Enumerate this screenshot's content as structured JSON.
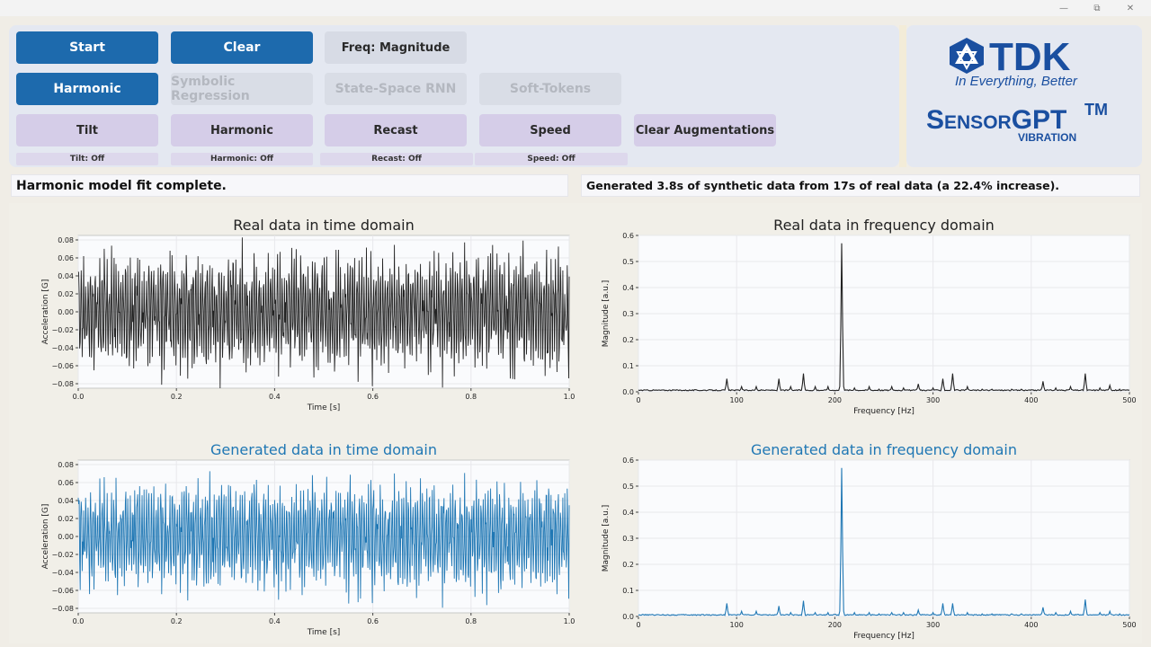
{
  "window": {
    "minimize_icon": "minimize-icon",
    "maximize_icon": "restore-icon",
    "close_icon": "close-icon"
  },
  "controls": {
    "start": "Start",
    "clear": "Clear",
    "freq_mode": "Freq: Magnitude",
    "harmonic_model": "Harmonic",
    "symbolic_regression": "Symbolic Regression",
    "state_space_rnn": "State-Space RNN",
    "soft_tokens": "Soft-Tokens",
    "aug_tilt": "Tilt",
    "aug_harmonic": "Harmonic",
    "aug_recast": "Recast",
    "aug_speed": "Speed",
    "clear_augmentations": "Clear Augmentations",
    "status_tilt": "Tilt: Off",
    "status_harmonic": "Harmonic: Off",
    "status_recast": "Recast: Off",
    "status_speed": "Speed: Off"
  },
  "logo": {
    "brand": "TDK",
    "tagline": "In Everything, Better",
    "product": "SensorGPT",
    "trademark": "TM",
    "product_sub": "VIBRATION"
  },
  "status": {
    "left": "Harmonic model fit complete.",
    "right": "Generated 3.8s of synthetic data from 17s of real data (a 22.4% increase)."
  },
  "colors": {
    "primary": "#1d6aad",
    "real": "#222222",
    "generated": "#1f77b4"
  },
  "chart_data": [
    {
      "id": "real_time",
      "type": "line",
      "title": "Real data in time domain",
      "xlabel": "Time [s]",
      "ylabel": "Acceleration [G]",
      "xlim": [
        0.0,
        1.0
      ],
      "ylim": [
        -0.085,
        0.085
      ],
      "xticks": [
        0.0,
        0.2,
        0.4,
        0.6,
        0.8,
        1.0
      ],
      "yticks": [
        -0.08,
        -0.06,
        -0.04,
        -0.02,
        0.0,
        0.02,
        0.04,
        0.06,
        0.08
      ],
      "signal": {
        "dominant_hz": 210,
        "amplitude_peak": 0.07,
        "samples": 1000
      },
      "color": "#222222",
      "grid": true
    },
    {
      "id": "real_freq",
      "type": "line",
      "title": "Real data in frequency domain",
      "xlabel": "Frequency [Hz]",
      "ylabel": "Magnitude [a.u.]",
      "xlim": [
        0,
        500
      ],
      "ylim": [
        0,
        0.6
      ],
      "xticks": [
        0,
        100,
        200,
        300,
        400,
        500
      ],
      "yticks": [
        0.0,
        0.1,
        0.2,
        0.3,
        0.4,
        0.5,
        0.6
      ],
      "peaks": [
        [
          90,
          0.05
        ],
        [
          105,
          0.02
        ],
        [
          120,
          0.02
        ],
        [
          143,
          0.05
        ],
        [
          155,
          0.02
        ],
        [
          168,
          0.07
        ],
        [
          180,
          0.02
        ],
        [
          193,
          0.02
        ],
        [
          207,
          0.57
        ],
        [
          220,
          0.015
        ],
        [
          235,
          0.02
        ],
        [
          245,
          0.01
        ],
        [
          258,
          0.02
        ],
        [
          270,
          0.015
        ],
        [
          285,
          0.03
        ],
        [
          300,
          0.015
        ],
        [
          310,
          0.05
        ],
        [
          320,
          0.07
        ],
        [
          335,
          0.02
        ],
        [
          350,
          0.01
        ],
        [
          360,
          0.01
        ],
        [
          380,
          0.01
        ],
        [
          390,
          0.01
        ],
        [
          412,
          0.04
        ],
        [
          425,
          0.015
        ],
        [
          440,
          0.02
        ],
        [
          455,
          0.07
        ],
        [
          470,
          0.015
        ],
        [
          480,
          0.025
        ],
        [
          490,
          0.01
        ]
      ],
      "color": "#222222",
      "grid": true
    },
    {
      "id": "gen_time",
      "type": "line",
      "title": "Generated data in time domain",
      "xlabel": "Time [s]",
      "ylabel": "Acceleration [G]",
      "xlim": [
        0.0,
        1.0
      ],
      "ylim": [
        -0.085,
        0.085
      ],
      "xticks": [
        0.0,
        0.2,
        0.4,
        0.6,
        0.8,
        1.0
      ],
      "yticks": [
        -0.08,
        -0.06,
        -0.04,
        -0.02,
        0.0,
        0.02,
        0.04,
        0.06,
        0.08
      ],
      "signal": {
        "dominant_hz": 210,
        "amplitude_peak": 0.065,
        "samples": 1000
      },
      "color": "#1f77b4",
      "grid": true
    },
    {
      "id": "gen_freq",
      "type": "line",
      "title": "Generated data in frequency domain",
      "xlabel": "Frequency [Hz]",
      "ylabel": "Magnitude [a.u.]",
      "xlim": [
        0,
        500
      ],
      "ylim": [
        0,
        0.6
      ],
      "xticks": [
        0,
        100,
        200,
        300,
        400,
        500
      ],
      "yticks": [
        0.0,
        0.1,
        0.2,
        0.3,
        0.4,
        0.5,
        0.6
      ],
      "peaks": [
        [
          90,
          0.05
        ],
        [
          105,
          0.02
        ],
        [
          120,
          0.02
        ],
        [
          143,
          0.04
        ],
        [
          155,
          0.015
        ],
        [
          168,
          0.06
        ],
        [
          180,
          0.015
        ],
        [
          193,
          0.015
        ],
        [
          207,
          0.57
        ],
        [
          220,
          0.015
        ],
        [
          235,
          0.015
        ],
        [
          245,
          0.01
        ],
        [
          258,
          0.015
        ],
        [
          270,
          0.015
        ],
        [
          285,
          0.025
        ],
        [
          300,
          0.015
        ],
        [
          310,
          0.05
        ],
        [
          320,
          0.05
        ],
        [
          335,
          0.015
        ],
        [
          350,
          0.01
        ],
        [
          360,
          0.01
        ],
        [
          380,
          0.01
        ],
        [
          390,
          0.01
        ],
        [
          412,
          0.035
        ],
        [
          425,
          0.015
        ],
        [
          440,
          0.02
        ],
        [
          455,
          0.065
        ],
        [
          470,
          0.015
        ],
        [
          480,
          0.02
        ],
        [
          490,
          0.01
        ]
      ],
      "color": "#1f77b4",
      "grid": true
    }
  ]
}
